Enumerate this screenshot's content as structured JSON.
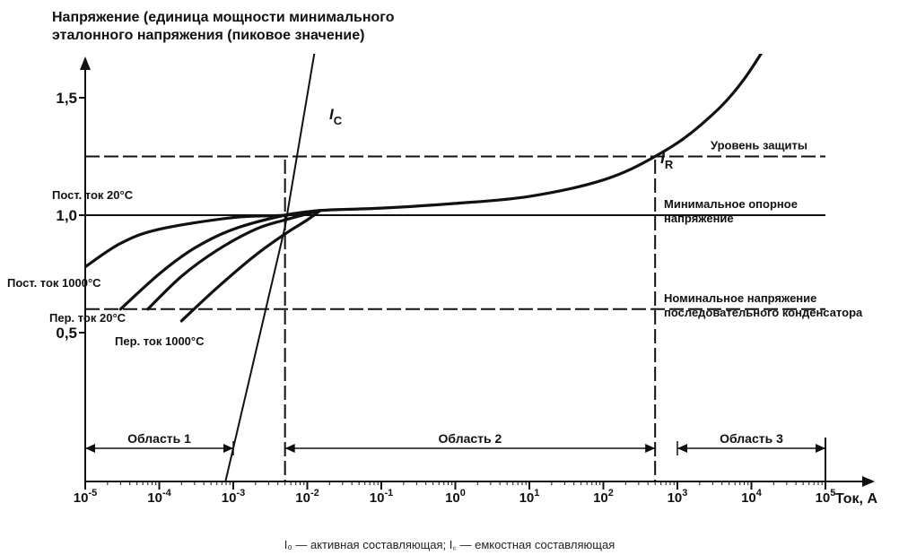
{
  "chart_data": {
    "type": "line",
    "title_lines": [
      "Напряжение (единица мощности минимального",
      "эталонного напряжения (пиковое значение)"
    ],
    "xlabel": "Ток, А",
    "x_scale": "log",
    "xlim": [
      1e-05,
      100000.0
    ],
    "x_ticks": [
      {
        "value": 1e-05,
        "base": "10",
        "exp": "-5"
      },
      {
        "value": 0.0001,
        "base": "10",
        "exp": "-4"
      },
      {
        "value": 0.001,
        "base": "10",
        "exp": "-3"
      },
      {
        "value": 0.01,
        "base": "10",
        "exp": "-2"
      },
      {
        "value": 0.1,
        "base": "10",
        "exp": "-1"
      },
      {
        "value": 1,
        "base": "10",
        "exp": "0"
      },
      {
        "value": 10,
        "base": "10",
        "exp": "1"
      },
      {
        "value": 100,
        "base": "10",
        "exp": "2"
      },
      {
        "value": 1000,
        "base": "10",
        "exp": "3"
      },
      {
        "value": 10000,
        "base": "10",
        "exp": "4"
      },
      {
        "value": 100000,
        "base": "10",
        "exp": "5"
      }
    ],
    "y_ticks": [
      {
        "value": 1.5,
        "label": "1,5"
      },
      {
        "value": 1.0,
        "label": "1,0"
      },
      {
        "value": 0.5,
        "label": "0,5"
      }
    ],
    "hlines": [
      {
        "y": 1.25,
        "label": "Уровень защиты",
        "style": "dashed"
      },
      {
        "y": 1.0,
        "label_lines": [
          "Минимальное опорное",
          "напряжение"
        ],
        "style": "solid"
      },
      {
        "y": 0.6,
        "label_lines": [
          "Номинальное напряжение",
          "последовательного конденсатора"
        ],
        "style": "dashed"
      }
    ],
    "vlines": [
      {
        "x": 0.005,
        "style": "dashed"
      },
      {
        "x": 500,
        "style": "dashed",
        "label_base": "I",
        "label_sub": "R"
      }
    ],
    "capacitive_line": {
      "label_base": "I",
      "label_sub": "C",
      "points": [
        [
          0.0007,
          -0.2
        ],
        [
          0.005,
          0.95
        ],
        [
          0.03,
          2.4
        ]
      ]
    },
    "series": [
      {
        "name": "Пост. ток 20°C",
        "points": [
          [
            1e-05,
            0.78
          ],
          [
            3e-05,
            0.88
          ],
          [
            0.0001,
            0.94
          ],
          [
            0.001,
            0.99
          ],
          [
            0.005,
            1.0
          ],
          [
            0.015,
            1.02
          ],
          [
            0.1,
            1.03
          ],
          [
            1,
            1.05
          ],
          [
            10,
            1.08
          ],
          [
            100,
            1.15
          ],
          [
            500,
            1.25
          ],
          [
            2000,
            1.38
          ],
          [
            8000,
            1.58
          ],
          [
            50000,
            1.98
          ]
        ]
      },
      {
        "name": "Пост. ток 1000°C",
        "points": [
          [
            3e-05,
            0.6
          ],
          [
            0.0001,
            0.75
          ],
          [
            0.0003,
            0.86
          ],
          [
            0.001,
            0.94
          ],
          [
            0.005,
            1.0
          ],
          [
            0.015,
            1.02
          ]
        ]
      },
      {
        "name": "Пер. ток 20°C",
        "points": [
          [
            7e-05,
            0.6
          ],
          [
            0.0002,
            0.74
          ],
          [
            0.0006,
            0.85
          ],
          [
            0.002,
            0.94
          ],
          [
            0.005,
            0.98
          ],
          [
            0.015,
            1.02
          ]
        ]
      },
      {
        "name": "Пер. ток 1000°C",
        "points": [
          [
            0.0002,
            0.55
          ],
          [
            0.0006,
            0.69
          ],
          [
            0.002,
            0.83
          ],
          [
            0.005,
            0.92
          ],
          [
            0.01,
            0.98
          ],
          [
            0.015,
            1.02
          ]
        ]
      }
    ],
    "regions": [
      {
        "label": "Область 1",
        "from": 1e-05,
        "to": 0.001
      },
      {
        "label": "Область 2",
        "from": 0.005,
        "to": 500
      },
      {
        "label": "Область 3",
        "from": 1000,
        "to": 100000
      }
    ],
    "caption": "I₀ — активная составляющая; I꜀ — емкостная составляющая"
  }
}
